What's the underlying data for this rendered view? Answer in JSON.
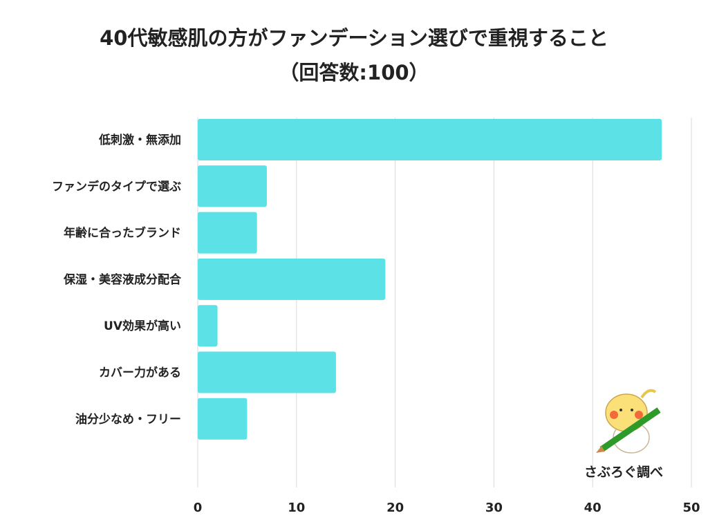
{
  "chart_data": {
    "type": "bar",
    "orientation": "horizontal",
    "title": "40代敏感肌の方がファンデーション選びで重視すること",
    "subtitle": "（回答数:100）",
    "categories": [
      "低刺激・無添加",
      "ファンデのタイプで選ぶ",
      "年齢に合ったブランド",
      "保湿・美容液成分配合",
      "UV効果が高い",
      "カバー力がある",
      "油分少なめ・フリー"
    ],
    "values": [
      47,
      7,
      6,
      19,
      2,
      14,
      5
    ],
    "xlim": [
      0,
      50
    ],
    "xticks": [
      "0",
      "10",
      "20",
      "30",
      "40",
      "50"
    ],
    "xlabel": "",
    "ylabel": "",
    "grid": true,
    "bar_color": "#5ce1e6"
  },
  "logo": {
    "text": "さぶろぐ調べ"
  }
}
